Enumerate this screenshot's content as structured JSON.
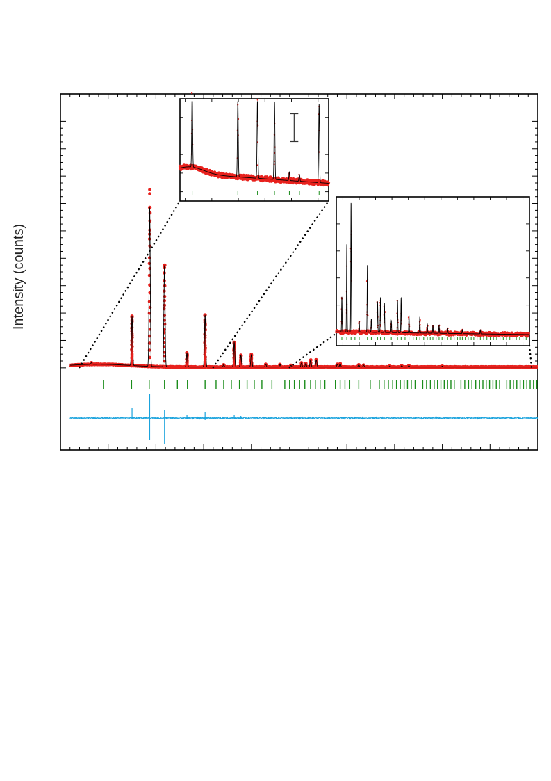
{
  "chart_data": {
    "type": "scatter",
    "title": "",
    "xlabel": "",
    "ylabel": "Intensity (counts)",
    "x_range": [
      0,
      100
    ],
    "y_range": [
      -30,
      100
    ],
    "grid": false,
    "legend": "none",
    "colors": {
      "observed": "#e8211d",
      "calculated": "#000000",
      "reflections": "#1a8c1a",
      "difference": "#1aa3dd",
      "connector": "#000000"
    },
    "series": [
      {
        "role": "observed",
        "style": "red dots"
      },
      {
        "role": "calculated",
        "style": "black line"
      },
      {
        "role": "reflections",
        "style": "green tick marks"
      },
      {
        "role": "difference",
        "style": "cyan line"
      }
    ],
    "peaks": [
      {
        "x": 6.5,
        "height": 0.6
      },
      {
        "x": 15.0,
        "height": 18.0
      },
      {
        "x": 18.7,
        "height": 58.0
      },
      {
        "x": 21.8,
        "height": 37.0
      },
      {
        "x": 26.5,
        "height": 5.0
      },
      {
        "x": 30.3,
        "height": 19.0
      },
      {
        "x": 34.2,
        "height": 0.8
      },
      {
        "x": 36.4,
        "height": 9.0
      },
      {
        "x": 37.8,
        "height": 4.2
      },
      {
        "x": 40.0,
        "height": 4.5
      },
      {
        "x": 43.0,
        "height": 1.0
      },
      {
        "x": 46.0,
        "height": 0.9
      },
      {
        "x": 48.3,
        "height": 0.6
      },
      {
        "x": 50.5,
        "height": 1.5
      },
      {
        "x": 51.4,
        "height": 1.3
      },
      {
        "x": 52.4,
        "height": 2.5
      },
      {
        "x": 53.6,
        "height": 2.6
      },
      {
        "x": 58.0,
        "height": 1.0
      },
      {
        "x": 58.6,
        "height": 1.2
      },
      {
        "x": 62.5,
        "height": 0.8
      },
      {
        "x": 63.5,
        "height": 0.7
      },
      {
        "x": 69.0,
        "height": 0.4
      },
      {
        "x": 71.5,
        "height": 0.5
      },
      {
        "x": 73.0,
        "height": 0.5
      },
      {
        "x": 80.0,
        "height": 0.3
      }
    ],
    "background": {
      "start": 0.3,
      "hump_center": 8.0,
      "hump_height": 1.0,
      "end": 0.3
    },
    "reflection_ticks": [
      9.0,
      14.9,
      18.6,
      21.8,
      24.5,
      26.6,
      30.3,
      32.6,
      34.2,
      35.8,
      37.5,
      39.1,
      40.6,
      42.2,
      44.3,
      47.0,
      48.0,
      49.0,
      50.1,
      51.2,
      52.4,
      53.4,
      54.4,
      55.4,
      57.6,
      58.6,
      59.6,
      60.6,
      62.5,
      64.9,
      66.8,
      67.8,
      68.7,
      69.6,
      70.4,
      71.2,
      72.0,
      72.7,
      73.5,
      74.3,
      75.9,
      76.7,
      77.5,
      78.3,
      79.0,
      79.7,
      80.4,
      81.1,
      81.8,
      82.5,
      83.9,
      84.7,
      85.5,
      86.2,
      87.0,
      87.8,
      88.5,
      89.2,
      89.9,
      90.6,
      91.3,
      92.0,
      93.5,
      94.2,
      94.9,
      95.6,
      96.3,
      97.0,
      97.7,
      98.4,
      99.1,
      99.8,
      101.1,
      101.8,
      102.5,
      103.2,
      103.9,
      104.6,
      105.3,
      106.0
    ],
    "insets": [
      {
        "name": "low-angle",
        "x_range": [
          4,
          32
        ],
        "y_range": [
          0,
          5
        ],
        "peaks": [
          {
            "x": 6.3,
            "height": 4.6
          },
          {
            "x": 14.9,
            "height": 4.5
          },
          {
            "x": 18.6,
            "height": 4.6
          },
          {
            "x": 21.8,
            "height": 4.5
          },
          {
            "x": 24.6,
            "height": 0.5
          },
          {
            "x": 26.5,
            "height": 0.4
          },
          {
            "x": 30.2,
            "height": 4.5
          }
        ],
        "background": {
          "start": 0.9,
          "hump_center": 6.0,
          "hump_height": 1.1,
          "end": 0.3
        },
        "reflection_ticks": [
          6.3,
          14.9,
          18.6,
          21.8,
          24.6,
          26.5,
          30.2
        ],
        "error_bar": {
          "x": 25.5,
          "low": 2.7,
          "high": 4.3
        }
      },
      {
        "name": "high-angle",
        "x_range": [
          48,
          107
        ],
        "y_range": [
          0,
          10
        ],
        "peaks": [
          {
            "x": 49.7,
            "height": 2.6
          },
          {
            "x": 51.2,
            "height": 6.5
          },
          {
            "x": 52.5,
            "height": 9.6
          },
          {
            "x": 55.0,
            "height": 0.8
          },
          {
            "x": 57.5,
            "height": 5.0
          },
          {
            "x": 58.7,
            "height": 1.0
          },
          {
            "x": 60.6,
            "height": 2.3
          },
          {
            "x": 61.5,
            "height": 2.6
          },
          {
            "x": 62.7,
            "height": 2.2
          },
          {
            "x": 64.8,
            "height": 0.9
          },
          {
            "x": 66.7,
            "height": 2.4
          },
          {
            "x": 67.8,
            "height": 2.6
          },
          {
            "x": 70.2,
            "height": 1.3
          },
          {
            "x": 73.5,
            "height": 1.2
          },
          {
            "x": 75.8,
            "height": 0.7
          },
          {
            "x": 77.5,
            "height": 0.6
          },
          {
            "x": 79.4,
            "height": 0.6
          },
          {
            "x": 82.0,
            "height": 0.4
          },
          {
            "x": 86.5,
            "height": 0.3
          },
          {
            "x": 92.0,
            "height": 0.3
          }
        ],
        "background": {
          "start": 0.2,
          "end": 0.0
        },
        "reflection_ticks": [
          49.7,
          51.2,
          52.5,
          53.7,
          55.0,
          57.5,
          58.7,
          60.6,
          61.5,
          62.7,
          64.8,
          66.7,
          67.8,
          69.0,
          70.2,
          71.5,
          72.5,
          73.5,
          74.7,
          75.8,
          76.7,
          77.5,
          78.5,
          79.4,
          80.3,
          81.2,
          82.0,
          83.0,
          84.0,
          85.0,
          85.8,
          86.5,
          87.4,
          88.3,
          89.2,
          90.0,
          91.0,
          92.0,
          93.0,
          94.0,
          95.0,
          96.0,
          97.0,
          98.0,
          99.0,
          100.0,
          101.0,
          102.0,
          103.0,
          104.0,
          105.0,
          106.0
        ],
        "y_ticks": [
          0,
          5
        ]
      }
    ]
  }
}
